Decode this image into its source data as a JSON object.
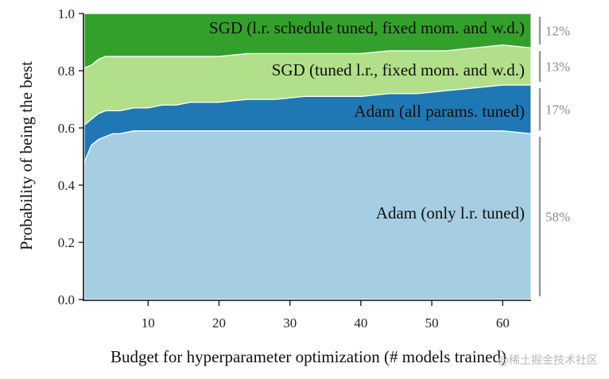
{
  "chart_data": {
    "type": "area",
    "stacked": true,
    "xlabel": "Budget for hyperparameter optimization (# models trained)",
    "ylabel": "Probability of being the best",
    "xlim": [
      1,
      64
    ],
    "ylim": [
      0,
      1
    ],
    "xticks": [
      10,
      20,
      30,
      40,
      50,
      60
    ],
    "yticks": [
      "0.0",
      "0.2",
      "0.4",
      "0.6",
      "0.8",
      "1.0"
    ],
    "x": [
      1,
      2,
      3,
      4,
      5,
      6,
      8,
      10,
      12,
      14,
      16,
      18,
      20,
      24,
      28,
      32,
      36,
      40,
      44,
      48,
      52,
      56,
      60,
      64
    ],
    "series": [
      {
        "name": "Adam (only l.r. tuned)",
        "color": "#a6cee3",
        "values": [
          0.48,
          0.54,
          0.56,
          0.57,
          0.58,
          0.58,
          0.59,
          0.59,
          0.59,
          0.59,
          0.59,
          0.59,
          0.59,
          0.59,
          0.59,
          0.59,
          0.59,
          0.59,
          0.59,
          0.59,
          0.59,
          0.59,
          0.59,
          0.58
        ]
      },
      {
        "name": "Adam (all params. tuned)",
        "color": "#1f78b4",
        "values": [
          0.13,
          0.09,
          0.09,
          0.09,
          0.08,
          0.08,
          0.08,
          0.08,
          0.09,
          0.09,
          0.1,
          0.1,
          0.1,
          0.11,
          0.11,
          0.12,
          0.12,
          0.12,
          0.13,
          0.13,
          0.14,
          0.15,
          0.16,
          0.17
        ]
      },
      {
        "name": "SGD (tuned l.r., fixed mom. and w.d.)",
        "color": "#b2df8a",
        "values": [
          0.2,
          0.19,
          0.19,
          0.19,
          0.19,
          0.19,
          0.18,
          0.18,
          0.17,
          0.17,
          0.16,
          0.16,
          0.16,
          0.16,
          0.16,
          0.15,
          0.15,
          0.15,
          0.15,
          0.15,
          0.14,
          0.14,
          0.14,
          0.13
        ]
      },
      {
        "name": "SGD (l.r. schedule tuned, fixed mom. and w.d.)",
        "color": "#33a02c",
        "values": [
          0.19,
          0.18,
          0.16,
          0.15,
          0.15,
          0.15,
          0.15,
          0.15,
          0.15,
          0.15,
          0.15,
          0.15,
          0.15,
          0.14,
          0.14,
          0.14,
          0.14,
          0.14,
          0.13,
          0.13,
          0.13,
          0.12,
          0.11,
          0.12
        ]
      }
    ],
    "final_share_labels": [
      "58%",
      "17%",
      "13%",
      "12%"
    ],
    "grid": false,
    "legend": "inline labels inside areas"
  },
  "watermark": "@稀土掘金技术社区"
}
